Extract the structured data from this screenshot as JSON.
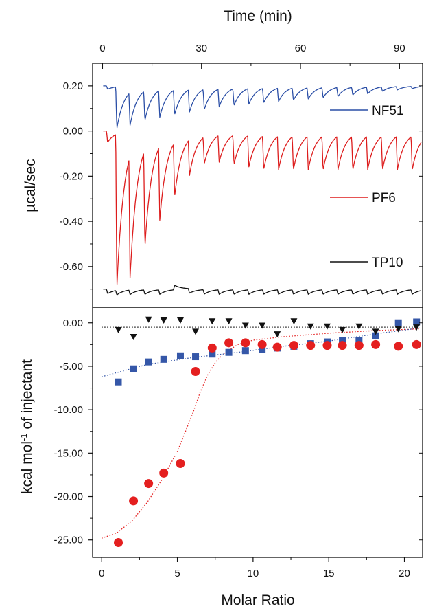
{
  "chart_data": [
    {
      "type": "line",
      "panel": "top",
      "xlabel": "Time (min)",
      "ylabel": "µcal/sec",
      "xlim": [
        -3,
        97
      ],
      "ylim": [
        -0.78,
        0.3
      ],
      "xticks": [
        0,
        30,
        60,
        90
      ],
      "xtick_labels": [
        "0",
        "30",
        "60",
        "90"
      ],
      "yticks": [
        0.2,
        0.0,
        -0.2,
        -0.4,
        -0.6
      ],
      "ytick_labels": [
        "0.20",
        "0.00",
        "-0.20",
        "-0.40",
        "-0.60"
      ],
      "x_axis_position": "top",
      "legend_placement": "right",
      "series": [
        {
          "name": "NF51",
          "color": "#2a4ea6",
          "baseline": 0.2,
          "injection_times": [
            1.2,
            4.0,
            8.0,
            12.5,
            17.0,
            21.5,
            26.0,
            30.5,
            35.0,
            39.5,
            44.0,
            48.5,
            53.0,
            57.5,
            62.0,
            66.5,
            71.0,
            75.5,
            80.0,
            84.5,
            89.0,
            93.5
          ],
          "peak_values": [
            0.185,
            0.015,
            0.055,
            0.07,
            0.08,
            0.09,
            0.1,
            0.11,
            0.12,
            0.125,
            0.13,
            0.135,
            0.14,
            0.145,
            0.15,
            0.155,
            0.16,
            0.165,
            0.17,
            0.18,
            0.185,
            0.19
          ]
        },
        {
          "name": "PF6",
          "color": "#dd1c1c",
          "baseline": 0.0,
          "injection_times": [
            1.2,
            4.0,
            8.0,
            12.5,
            17.0,
            21.5,
            26.0,
            30.5,
            35.0,
            39.5,
            44.0,
            48.5,
            53.0,
            57.5,
            62.0,
            66.5,
            71.0,
            75.5,
            80.0,
            84.5,
            89.0,
            93.5
          ],
          "peak_values": [
            -0.05,
            -0.68,
            -0.54,
            -0.43,
            -0.33,
            -0.24,
            -0.16,
            -0.12,
            -0.12,
            -0.13,
            -0.14,
            -0.15,
            -0.15,
            -0.15,
            -0.15,
            -0.15,
            -0.15,
            -0.15,
            -0.15,
            -0.15,
            -0.15,
            -0.15
          ]
        },
        {
          "name": "TP10",
          "color": "#111111",
          "baseline": -0.7,
          "injection_times": [
            1.2,
            4.0,
            8.0,
            12.5,
            17.0,
            21.5,
            26.0,
            30.5,
            35.0,
            39.5,
            44.0,
            48.5,
            53.0,
            57.5,
            62.0,
            66.5,
            71.0,
            75.5,
            80.0,
            84.5,
            89.0,
            93.5
          ],
          "peak_values": [
            -0.72,
            -0.72,
            -0.72,
            -0.72,
            -0.72,
            -0.68,
            -0.72,
            -0.72,
            -0.72,
            -0.72,
            -0.72,
            -0.72,
            -0.72,
            -0.72,
            -0.72,
            -0.72,
            -0.72,
            -0.72,
            -0.72,
            -0.72,
            -0.72,
            -0.72
          ]
        }
      ]
    },
    {
      "type": "scatter",
      "panel": "bottom",
      "xlabel": "Molar Ratio",
      "ylabel": "kcal mol",
      "ylabel_superscript": "-1",
      "ylabel_tail": " of injectant",
      "xlim": [
        -0.6,
        21.2
      ],
      "ylim": [
        -27.0,
        1.8
      ],
      "xticks": [
        0,
        5,
        10,
        15,
        20
      ],
      "xtick_labels": [
        "0",
        "5",
        "10",
        "15",
        "20"
      ],
      "yticks": [
        0,
        -5,
        -10,
        -15,
        -20,
        -25
      ],
      "ytick_labels": [
        "0.00",
        "-5.00",
        "-10.00",
        "-15.00",
        "-20.00",
        "-25.00"
      ],
      "series": [
        {
          "name": "NF51",
          "marker": "square",
          "color": "#3557a8",
          "x": [
            1.1,
            2.1,
            3.1,
            4.1,
            5.2,
            6.2,
            7.3,
            8.4,
            9.5,
            10.6,
            11.6,
            12.7,
            13.8,
            14.9,
            15.9,
            17.0,
            18.1,
            19.6,
            20.8
          ],
          "y": [
            -6.8,
            -5.3,
            -4.5,
            -4.2,
            -3.8,
            -3.9,
            -3.6,
            -3.4,
            -3.2,
            -3.1,
            -2.9,
            -2.7,
            -2.4,
            -2.2,
            -2.0,
            -2.0,
            -1.5,
            0.0,
            0.1
          ],
          "fit_x": [
            0,
            3,
            6,
            9,
            12,
            15,
            18,
            21
          ],
          "fit_y": [
            -6.2,
            -4.8,
            -4.0,
            -3.4,
            -2.7,
            -2.1,
            -1.3,
            -0.6
          ]
        },
        {
          "name": "PF6",
          "marker": "circle",
          "color": "#e41f1f",
          "x": [
            1.1,
            2.1,
            3.1,
            4.1,
            5.2,
            6.2,
            7.3,
            8.4,
            9.5,
            10.6,
            11.6,
            12.7,
            13.8,
            14.9,
            15.9,
            17.0,
            18.1,
            19.6,
            20.8
          ],
          "y": [
            -25.3,
            -20.5,
            -18.5,
            -17.3,
            -16.2,
            -5.6,
            -2.9,
            -2.3,
            -2.3,
            -2.5,
            -2.8,
            -2.6,
            -2.6,
            -2.6,
            -2.6,
            -2.6,
            -2.5,
            -2.7,
            -2.5
          ],
          "fit_x": [
            0,
            1,
            2,
            3,
            4,
            5,
            6,
            6.5,
            7,
            7.5,
            8,
            9,
            10,
            12,
            15,
            18,
            21
          ],
          "fit_y": [
            -24.8,
            -24.2,
            -22.8,
            -20.7,
            -18.0,
            -14.8,
            -10.5,
            -8.0,
            -6.0,
            -4.6,
            -3.6,
            -2.5,
            -2.0,
            -1.6,
            -1.2,
            -0.9,
            -0.7
          ]
        },
        {
          "name": "TP10",
          "marker": "triangle-down",
          "color": "#111111",
          "x": [
            1.1,
            2.1,
            3.1,
            4.1,
            5.2,
            6.2,
            7.3,
            8.4,
            9.5,
            10.6,
            11.6,
            12.7,
            13.8,
            14.9,
            15.9,
            17.0,
            18.1,
            19.6,
            20.8
          ],
          "y": [
            -0.8,
            -1.6,
            0.4,
            0.3,
            0.3,
            -1.0,
            0.2,
            0.2,
            -0.3,
            -0.3,
            -1.3,
            0.2,
            -0.4,
            -0.4,
            -0.8,
            -0.4,
            -1.0,
            -0.7,
            -0.5
          ],
          "fit_x": [
            0,
            7,
            14,
            21
          ],
          "fit_y": [
            -0.5,
            -0.5,
            -0.5,
            -0.5
          ]
        }
      ]
    }
  ]
}
